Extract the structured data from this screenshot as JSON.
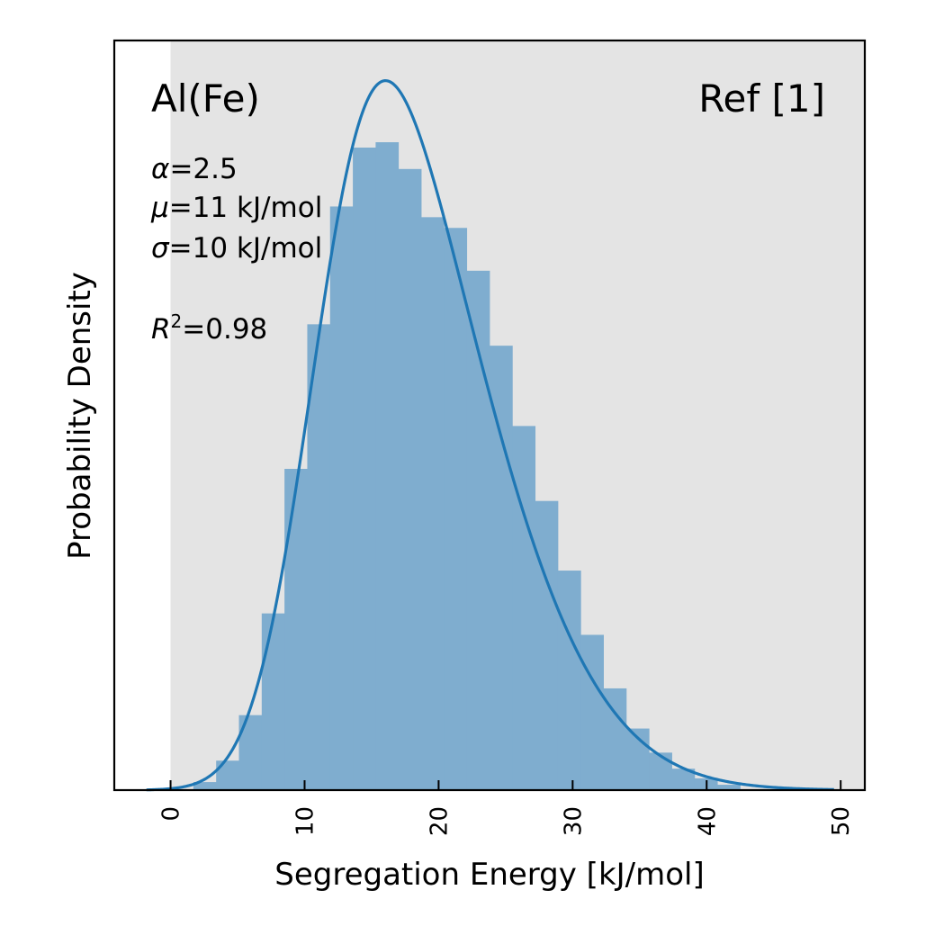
{
  "chart_data": {
    "type": "bar",
    "xlabel": "Segregation Energy [kJ/mol]",
    "ylabel": "Probability Density",
    "xlim": [
      -4.2,
      51.8
    ],
    "xticks": [
      0,
      10,
      20,
      30,
      40,
      50
    ],
    "yticks_shown": false,
    "shaded_region": [
      0,
      51.8
    ],
    "bin_width": 1.7,
    "bins": [
      {
        "x": 1.7,
        "value": 0.0015
      },
      {
        "x": 3.4,
        "value": 0.0055
      },
      {
        "x": 5.1,
        "value": 0.014
      },
      {
        "x": 6.8,
        "value": 0.033
      },
      {
        "x": 8.5,
        "value": 0.06
      },
      {
        "x": 10.2,
        "value": 0.087
      },
      {
        "x": 11.9,
        "value": 0.109
      },
      {
        "x": 13.6,
        "value": 0.12
      },
      {
        "x": 15.3,
        "value": 0.121
      },
      {
        "x": 17.0,
        "value": 0.116
      },
      {
        "x": 18.7,
        "value": 0.107
      },
      {
        "x": 20.4,
        "value": 0.105
      },
      {
        "x": 22.1,
        "value": 0.097
      },
      {
        "x": 23.8,
        "value": 0.083
      },
      {
        "x": 25.5,
        "value": 0.068
      },
      {
        "x": 27.2,
        "value": 0.054
      },
      {
        "x": 28.9,
        "value": 0.041
      },
      {
        "x": 30.6,
        "value": 0.029
      },
      {
        "x": 32.3,
        "value": 0.019
      },
      {
        "x": 34.0,
        "value": 0.0115
      },
      {
        "x": 35.7,
        "value": 0.007
      },
      {
        "x": 37.4,
        "value": 0.004
      },
      {
        "x": 39.1,
        "value": 0.0022
      },
      {
        "x": 40.8,
        "value": 0.001
      }
    ],
    "ylim": [
      0,
      0.14
    ],
    "fit": {
      "distribution": "skew-normal",
      "alpha": 2.5,
      "mu": 11,
      "sigma": 10,
      "peak_x": 16.5,
      "peak_y": 0.1325
    },
    "annotations": {
      "system": "Al(Fe)",
      "reference": "Ref [1]",
      "alpha_text": "=2.5",
      "mu_text": "=11 kJ/mol",
      "sigma_text": "=10 kJ/mol",
      "r2_text": "=0.98"
    }
  }
}
